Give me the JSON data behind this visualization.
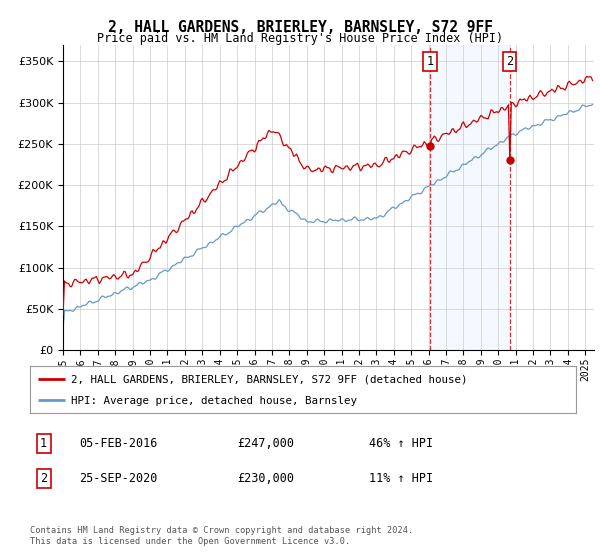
{
  "title": "2, HALL GARDENS, BRIERLEY, BARNSLEY, S72 9FF",
  "subtitle": "Price paid vs. HM Land Registry's House Price Index (HPI)",
  "yticks": [
    0,
    50000,
    100000,
    150000,
    200000,
    250000,
    300000,
    350000
  ],
  "ylim": [
    0,
    370000
  ],
  "sale1_year_val": 2016.08,
  "sale1_price": 247000,
  "sale2_year_val": 2020.67,
  "sale2_price": 230000,
  "sale1_date": "05-FEB-2016",
  "sale2_date": "25-SEP-2020",
  "sale1_pct": "46% ↑ HPI",
  "sale2_pct": "11% ↑ HPI",
  "hpi_color": "#6699cc",
  "price_color": "#cc0000",
  "legend_label_price": "2, HALL GARDENS, BRIERLEY, BARNSLEY, S72 9FF (detached house)",
  "legend_label_hpi": "HPI: Average price, detached house, Barnsley",
  "footer": "Contains HM Land Registry data © Crown copyright and database right 2024.\nThis data is licensed under the Open Government Licence v3.0.",
  "xstart": 1995,
  "xend": 2025.5
}
